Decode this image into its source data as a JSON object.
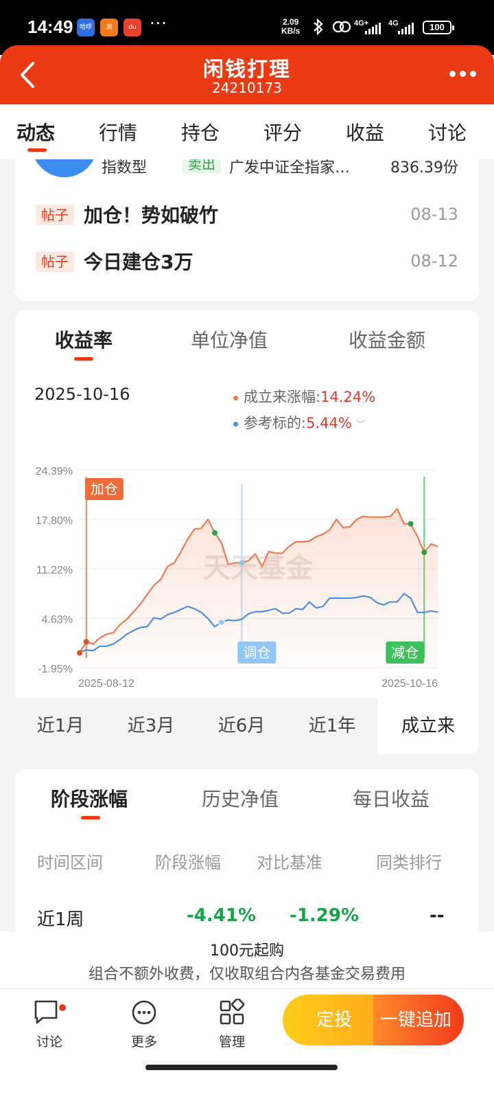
{
  "status_bar": {
    "time": "14:49",
    "app_icons": [
      "哈啰",
      "滴",
      "du"
    ],
    "more": "···",
    "speed_value": "2.09",
    "speed_unit": "KB/s",
    "net1": "4G+",
    "net2": "4G",
    "battery": "100",
    "colors": {
      "app1": "#2f6de0",
      "app2": "#f27c1c",
      "app3": "#e8422f"
    }
  },
  "header": {
    "title": "闲钱打理",
    "subtitle": "24210173",
    "back_icon": "chevron-left-icon",
    "more_icon": "more-dots-icon"
  },
  "tabs": [
    {
      "label": "动态",
      "active": true
    },
    {
      "label": "行情",
      "active": false
    },
    {
      "label": "持仓",
      "active": false
    },
    {
      "label": "评分",
      "active": false
    },
    {
      "label": "收益",
      "active": false
    },
    {
      "label": "讨论",
      "active": false
    }
  ],
  "activity": {
    "trade": {
      "type": "指数型",
      "action": "卖出",
      "fund": "广发中证全指家…",
      "shares": "836.39份"
    },
    "posts": [
      {
        "tag": "帖子",
        "title": "加仓！势如破竹",
        "date": "08-13"
      },
      {
        "tag": "帖子",
        "title": "今日建仓3万",
        "date": "08-12"
      }
    ]
  },
  "chart_card": {
    "tabs": [
      {
        "label": "收益率",
        "active": true
      },
      {
        "label": "单位净值",
        "active": false
      },
      {
        "label": "收益金额",
        "active": false
      }
    ],
    "date": "2025-10-16",
    "legend": [
      {
        "label": "成立来涨幅:",
        "value": "14.24%",
        "color": "#f07a50"
      },
      {
        "label": "参考标的:",
        "value": "5.44%",
        "color": "#4a90e2"
      }
    ],
    "periods": [
      {
        "label": "近1月",
        "active": false
      },
      {
        "label": "近3月",
        "active": false
      },
      {
        "label": "近6月",
        "active": false
      },
      {
        "label": "近1年",
        "active": false
      },
      {
        "label": "成立来",
        "active": true
      }
    ]
  },
  "chart_data": {
    "type": "line",
    "y_ticks": [
      "24.39%",
      "17.80%",
      "11.22%",
      "4.63%",
      "-1.95%"
    ],
    "ylim": [
      -1.95,
      24.39
    ],
    "x_labels": [
      "2025-08-12",
      "2025-10-16"
    ],
    "watermark": "天天基金",
    "series": [
      {
        "name": "成立来涨幅",
        "color": "#f07a50",
        "values": [
          0,
          1.5,
          1.2,
          2.0,
          2.5,
          2.7,
          3.8,
          4.5,
          5.5,
          6.5,
          7.8,
          9.0,
          9.8,
          11.5,
          12.0,
          13.5,
          15.2,
          16.5,
          16.6,
          17.8,
          16.0,
          14.7,
          11.8,
          12.0,
          12.0,
          12.3,
          13.2,
          11.5,
          13.5,
          13.3,
          13.3,
          14.2,
          14.8,
          14.8,
          14.9,
          15.5,
          15.8,
          16.4,
          17.8,
          16.7,
          16.8,
          17.8,
          18.2,
          18.1,
          18.1,
          18.1,
          18.2,
          19.2,
          17.2,
          17.2,
          15.5,
          13.4,
          14.5,
          14.2
        ],
        "points": [
          {
            "label": "加仓",
            "index": 1,
            "marker_color": "#e05020"
          },
          {
            "label": "sell-point",
            "index": 20,
            "marker_color": "#2aa04a"
          },
          {
            "label": "sell-point",
            "index": 49,
            "marker_color": "#2aa04a"
          },
          {
            "label": "sell-point",
            "index": 51,
            "marker_color": "#2aa04a"
          }
        ]
      },
      {
        "name": "参考标的",
        "color": "#4a90e2",
        "values": [
          0.1,
          0.4,
          0.3,
          0.9,
          0.9,
          1.2,
          1.8,
          2.5,
          3.0,
          3.4,
          3.5,
          4.7,
          4.5,
          5.1,
          5.4,
          5.8,
          6.2,
          5.9,
          5.4,
          4.6,
          3.5,
          4.1,
          4.4,
          4.3,
          4.5,
          5.2,
          5.5,
          5.5,
          5.7,
          5.9,
          5.3,
          5.3,
          5.9,
          5.8,
          6.8,
          6.0,
          6.2,
          7.3,
          7.3,
          7.3,
          7.3,
          7.4,
          7.6,
          7.4,
          6.7,
          6.4,
          6.8,
          6.8,
          7.9,
          7.3,
          5.4,
          5.4,
          5.6,
          5.44
        ]
      }
    ],
    "annotations": [
      {
        "text": "加仓",
        "color": "#f06a3a"
      },
      {
        "text": "调仓",
        "color": "#8fc6f5"
      },
      {
        "text": "减仓",
        "color": "#3cc25a"
      }
    ],
    "grid": true
  },
  "stage_card": {
    "tabs": [
      {
        "label": "阶段涨幅",
        "active": true
      },
      {
        "label": "历史净值",
        "active": false
      },
      {
        "label": "每日收益",
        "active": false
      }
    ],
    "columns": [
      "时间区间",
      "阶段涨幅",
      "对比基准",
      "同类排行"
    ],
    "rows": [
      {
        "period": "近1周",
        "change": "-4.41%",
        "benchmark": "-1.29%",
        "rank": "--"
      }
    ]
  },
  "purchase": {
    "line1": "100元起购",
    "line2": "组合不额外收费，仅收取组合内各基金交易费用"
  },
  "bottom_bar": {
    "items": [
      {
        "label": "讨论",
        "icon": "chat-icon"
      },
      {
        "label": "更多",
        "icon": "more-circle-icon"
      },
      {
        "label": "管理",
        "icon": "grid-icon"
      }
    ],
    "btn_dingtou": "定投",
    "btn_add": "一键追加"
  }
}
